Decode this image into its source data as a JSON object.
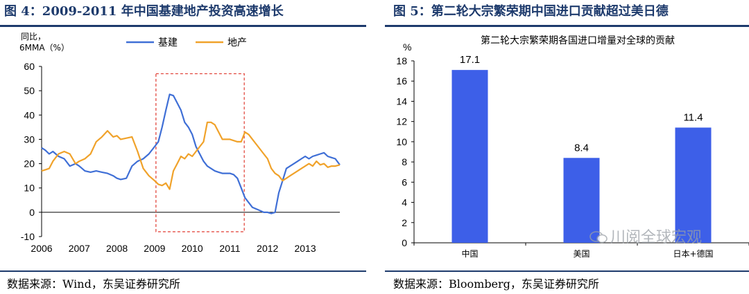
{
  "left": {
    "title": "图 4：2009-2011 年中国基建地产投资高速增长",
    "source": "数据来源：Wind，东吴证券研究所"
  },
  "right": {
    "title": "图 5：第二轮大宗繁荣期中国进口贡献超过美日德",
    "source": "数据来源：Bloomberg，东吴证券研究所"
  },
  "watermark": "川阅全球宏观",
  "chart_data": [
    {
      "type": "line",
      "title": "",
      "ylabel": "同比，6MMA（%）",
      "ylabel_lines": [
        "同比，",
        "6MMA（%）"
      ],
      "ylim": [
        -10,
        60
      ],
      "yticks": [
        -10,
        0,
        10,
        20,
        30,
        40,
        50,
        60
      ],
      "xlim": [
        2006.0,
        2013.92
      ],
      "xticks": [
        "2006",
        "2007",
        "2008",
        "2009",
        "2010",
        "2011",
        "2012",
        "2013"
      ],
      "grid": false,
      "legend": "top-center",
      "annotation": "red dashed box highlighting 2009-2011",
      "highlight_range": [
        2009.0,
        2011.4
      ],
      "series": [
        {
          "name": "基建",
          "color": "#3f6fd6",
          "x": [
            2006.0,
            2006.1,
            2006.2,
            2006.3,
            2006.45,
            2006.6,
            2006.75,
            2006.9,
            2007.0,
            2007.15,
            2007.3,
            2007.45,
            2007.6,
            2007.75,
            2007.9,
            2008.0,
            2008.1,
            2008.25,
            2008.4,
            2008.55,
            2008.7,
            2008.85,
            2009.0,
            2009.1,
            2009.2,
            2009.3,
            2009.4,
            2009.5,
            2009.6,
            2009.7,
            2009.8,
            2009.9,
            2010.0,
            2010.1,
            2010.2,
            2010.3,
            2010.4,
            2010.5,
            2010.6,
            2010.7,
            2010.8,
            2010.9,
            2011.0,
            2011.1,
            2011.2,
            2011.3,
            2011.4,
            2011.5,
            2011.6,
            2011.75,
            2011.9,
            2012.0,
            2012.1,
            2012.2,
            2012.3,
            2012.4,
            2012.5,
            2012.6,
            2012.7,
            2012.8,
            2012.9,
            2013.0,
            2013.1,
            2013.2,
            2013.3,
            2013.4,
            2013.5,
            2013.6,
            2013.7,
            2013.8,
            2013.92
          ],
          "y": [
            26.5,
            25.5,
            24,
            25,
            23,
            22,
            19,
            20,
            19,
            17,
            16.5,
            17,
            16.5,
            16,
            15,
            14,
            13.5,
            14,
            19,
            21,
            22,
            24,
            27,
            29,
            35,
            42,
            48.5,
            48,
            45,
            42,
            37,
            35,
            32,
            27,
            24,
            21,
            19,
            18,
            17,
            16.5,
            16,
            16,
            16,
            15.5,
            14,
            10,
            6,
            4,
            2,
            1,
            0,
            0,
            -0.5,
            0,
            8,
            13,
            18,
            19,
            20,
            21,
            22,
            23,
            22,
            23,
            23.5,
            24,
            24.5,
            23,
            22.5,
            22,
            19.5
          ]
        },
        {
          "name": "地产",
          "color": "#f0a22a",
          "x": [
            2006.0,
            2006.1,
            2006.2,
            2006.3,
            2006.45,
            2006.6,
            2006.75,
            2006.9,
            2007.0,
            2007.15,
            2007.3,
            2007.45,
            2007.6,
            2007.75,
            2007.9,
            2008.0,
            2008.1,
            2008.25,
            2008.4,
            2008.55,
            2008.7,
            2008.85,
            2009.0,
            2009.1,
            2009.2,
            2009.3,
            2009.4,
            2009.5,
            2009.6,
            2009.7,
            2009.8,
            2009.9,
            2010.0,
            2010.1,
            2010.2,
            2010.3,
            2010.4,
            2010.5,
            2010.6,
            2010.7,
            2010.8,
            2010.9,
            2011.0,
            2011.1,
            2011.2,
            2011.3,
            2011.4,
            2011.5,
            2011.6,
            2011.75,
            2011.9,
            2012.0,
            2012.1,
            2012.2,
            2012.3,
            2012.4,
            2012.5,
            2012.6,
            2012.7,
            2012.8,
            2012.9,
            2013.0,
            2013.1,
            2013.2,
            2013.3,
            2013.4,
            2013.5,
            2013.6,
            2013.7,
            2013.8,
            2013.92
          ],
          "y": [
            17,
            17.5,
            18,
            21,
            24,
            25,
            24,
            20,
            21,
            22,
            24,
            29,
            31,
            33.5,
            31,
            31.5,
            30,
            30.5,
            31,
            25,
            18,
            15,
            13,
            11.5,
            11,
            12,
            9.5,
            17,
            20,
            23,
            22,
            24,
            23,
            25,
            27,
            29,
            37,
            37,
            36,
            33,
            30,
            30,
            30,
            29.5,
            29,
            29,
            33,
            32,
            30,
            27,
            24,
            22,
            18,
            16,
            15,
            13,
            14,
            15,
            16,
            17,
            18,
            19,
            20,
            19,
            21,
            19.5,
            20,
            18.5,
            19,
            19,
            19.5
          ]
        }
      ]
    },
    {
      "type": "bar",
      "title": "第二轮大宗繁荣期各国进口增量对全球的贡献",
      "ylabel": "%",
      "ylim": [
        0,
        18
      ],
      "yticks": [
        0,
        2,
        4,
        6,
        8,
        10,
        12,
        14,
        16,
        18
      ],
      "categories": [
        "中国",
        "美国",
        "日本+德国"
      ],
      "values": [
        17.1,
        8.4,
        11.4
      ],
      "value_labels": [
        "17.1",
        "8.4",
        "11.4"
      ],
      "color": "#3d5fe8",
      "grid": false
    }
  ]
}
